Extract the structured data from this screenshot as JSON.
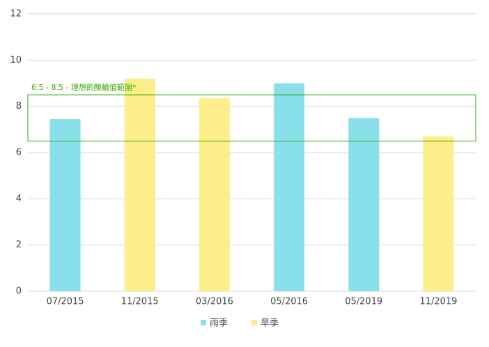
{
  "chart_data": {
    "type": "bar",
    "categories": [
      "07/2015",
      "11/2015",
      "03/2016",
      "05/2016",
      "05/2019",
      "11/2019"
    ],
    "series": [
      {
        "name": "雨季",
        "color": "#8ae0ea",
        "values": [
          7.45,
          null,
          null,
          9.0,
          7.5,
          null
        ]
      },
      {
        "name": "旱季",
        "color": "#fdee8a",
        "values": [
          null,
          9.2,
          8.35,
          null,
          null,
          6.7
        ]
      }
    ],
    "ylim": [
      0,
      12
    ],
    "yticks": [
      0,
      2,
      4,
      6,
      8,
      10,
      12
    ],
    "grid": true,
    "annotation": {
      "label": "6.5 - 8.5 - 理想的酸鹼值範圍*",
      "range": [
        6.5,
        8.5
      ],
      "color": "#33aa00"
    },
    "legend": "bottom"
  }
}
